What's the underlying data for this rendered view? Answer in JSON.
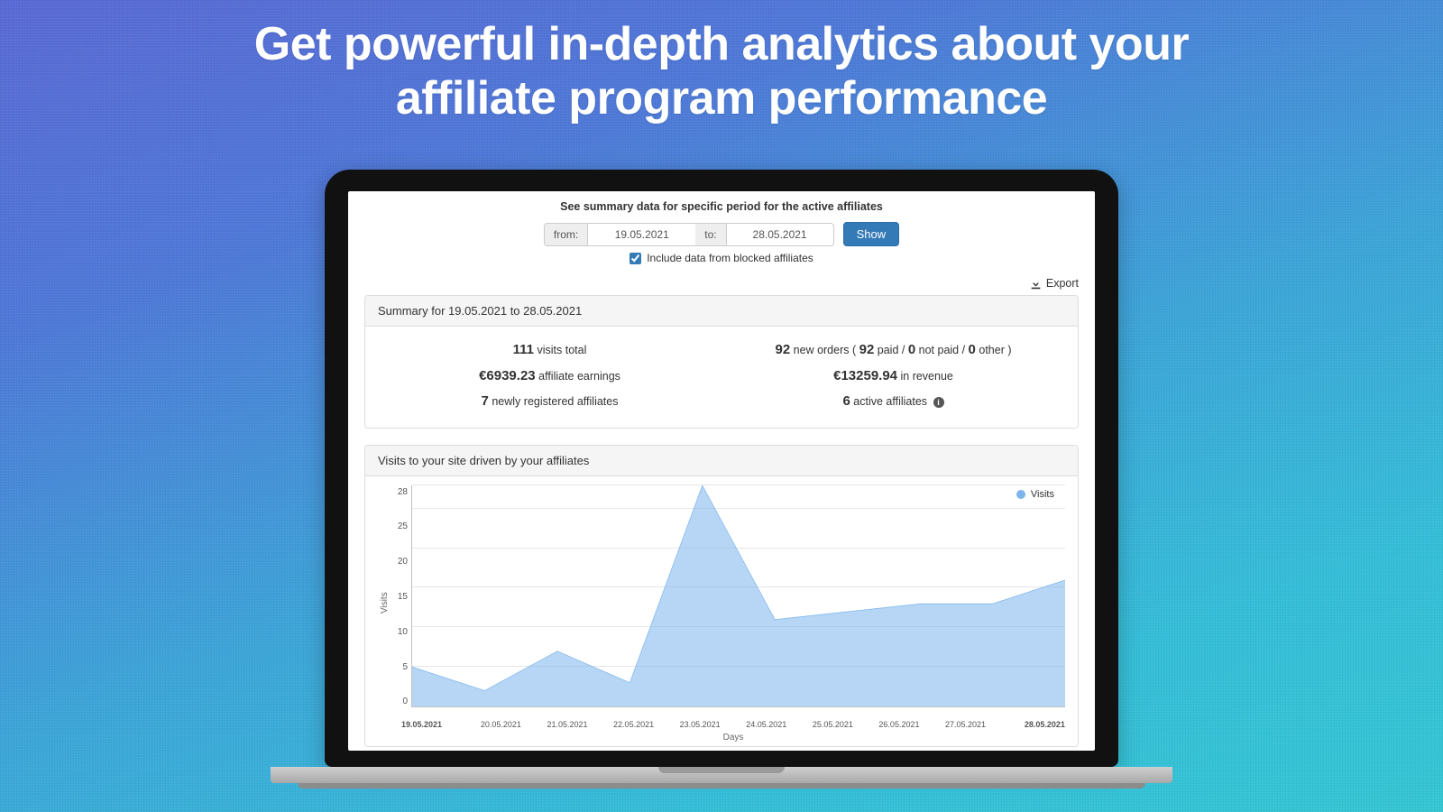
{
  "hero": {
    "line1": "Get powerful in-depth analytics about your",
    "line2": "affiliate program performance"
  },
  "filters": {
    "title": "See summary data for specific period for the active affiliates",
    "from_label": "from:",
    "from_value": "19.05.2021",
    "to_label": "to:",
    "to_value": "28.05.2021",
    "show_button": "Show",
    "include_blocked_label": "Include data from blocked affiliates",
    "include_blocked_checked": true
  },
  "export_label": "Export",
  "summary": {
    "header": "Summary for 19.05.2021 to 28.05.2021",
    "visits_total": "111",
    "visits_total_label": " visits total",
    "earnings": "€6939.23",
    "earnings_label": " affiliate earnings",
    "new_affiliates": "7",
    "new_affiliates_label": " newly registered affiliates",
    "new_orders": "92",
    "new_orders_label_a": " new orders ( ",
    "paid": "92",
    "paid_label": " paid / ",
    "not_paid": "0",
    "not_paid_label": " not paid / ",
    "other": "0",
    "other_label": " other )",
    "revenue": "€13259.94",
    "revenue_label": " in revenue",
    "active_affiliates": "6",
    "active_affiliates_label": " active affiliates "
  },
  "chart": {
    "header": "Visits to your site driven by your affiliates",
    "legend_label": "Visits",
    "type": "area",
    "y_axis_label": "Visits",
    "x_axis_label": "Days",
    "y_ticks": [
      "28",
      "25",
      "20",
      "15",
      "10",
      "5",
      "0"
    ],
    "y_max": 28,
    "x_labels": [
      "19.05.2021",
      "20.05.2021",
      "21.05.2021",
      "22.05.2021",
      "23.05.2021",
      "24.05.2021",
      "25.05.2021",
      "26.05.2021",
      "27.05.2021",
      "28.05.2021"
    ],
    "values": [
      5,
      2,
      7,
      3,
      28,
      11,
      12,
      13,
      13,
      16
    ],
    "series_color": "#7cb5ec",
    "fill_color": "rgba(124,181,236,0.55)",
    "grid_color": "#e6e6e6",
    "axis_color": "#c0c0c0",
    "background": "#ffffff"
  }
}
